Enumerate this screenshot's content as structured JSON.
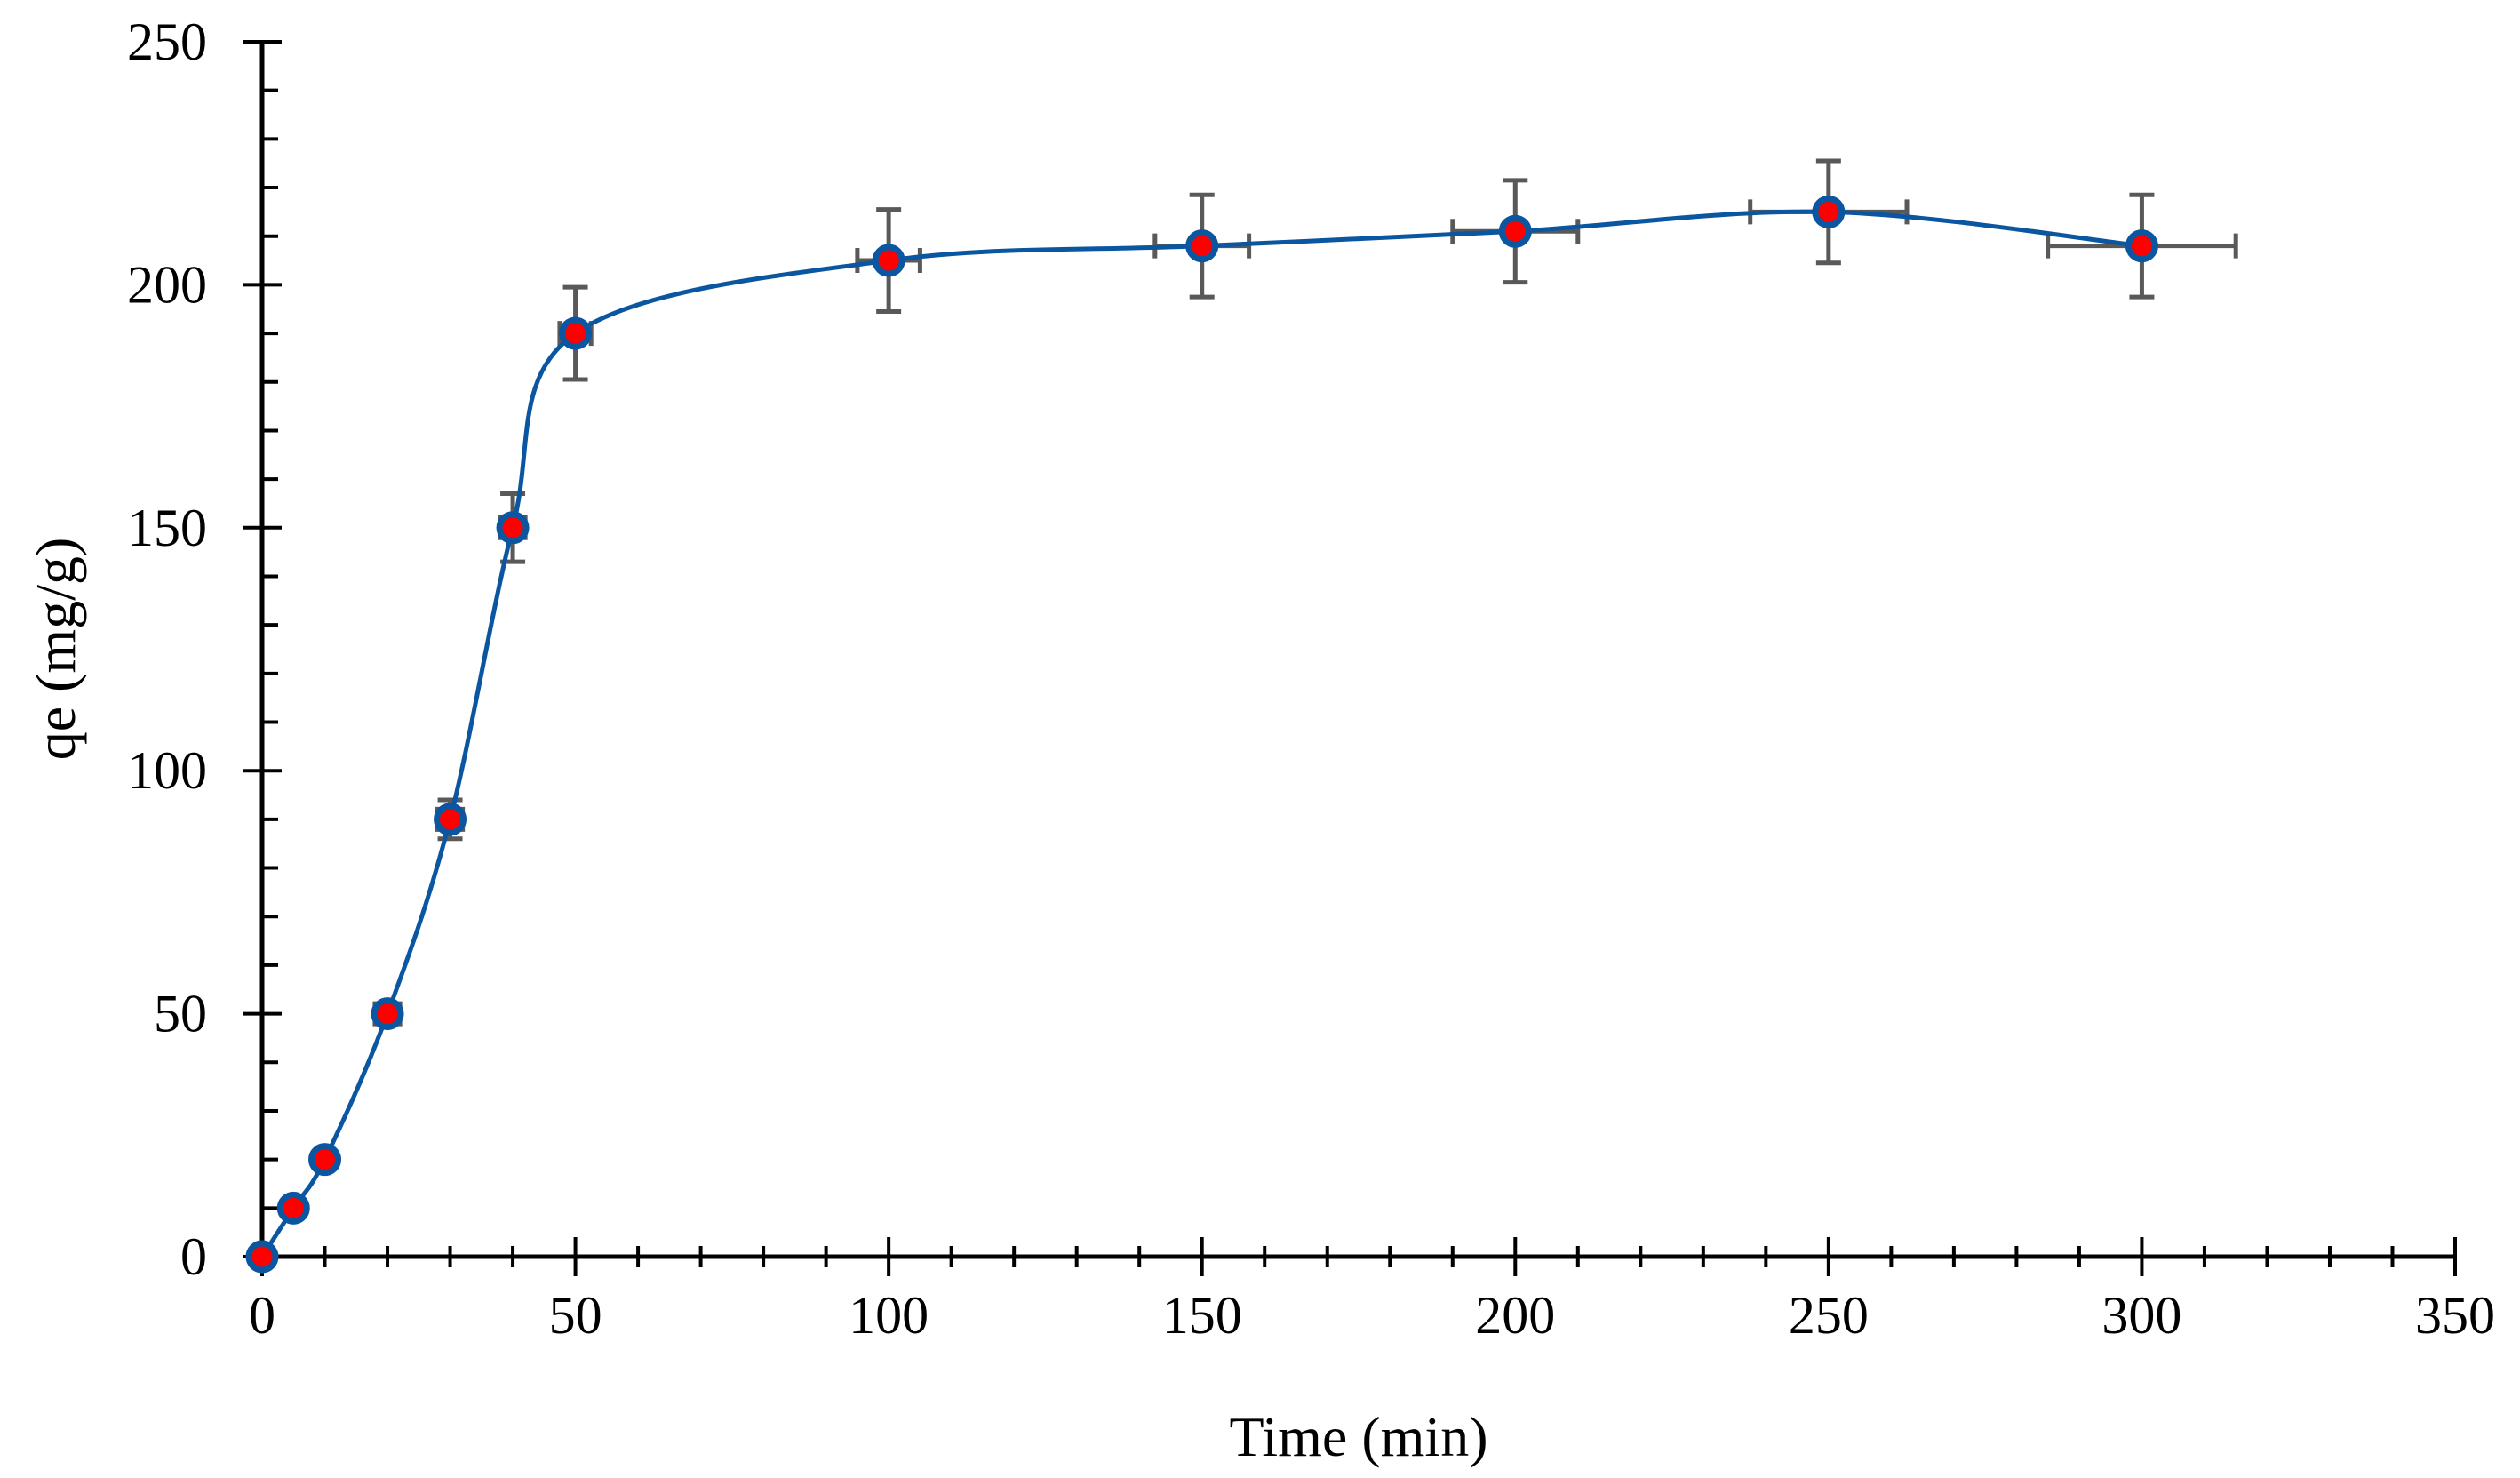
{
  "chart_data": {
    "type": "scatter",
    "title": "",
    "xlabel": "Time (min)",
    "ylabel": "qe (mg/g)",
    "xlim": [
      0,
      350
    ],
    "ylim": [
      0,
      250
    ],
    "x_major_ticks": [
      0,
      50,
      100,
      150,
      200,
      250,
      300,
      350
    ],
    "y_major_ticks": [
      0,
      50,
      100,
      150,
      200,
      250
    ],
    "x_minor_step": 10,
    "y_minor_step": 10,
    "grid": false,
    "series": [
      {
        "name": "qe",
        "x": [
          0,
          5,
          10,
          20,
          30,
          40,
          50,
          100,
          150,
          200,
          250,
          300
        ],
        "y": [
          0,
          10,
          20,
          50,
          90,
          150,
          190,
          205,
          208,
          211,
          215,
          208
        ],
        "y_err": [
          0,
          0,
          0,
          2,
          4,
          7,
          9.5,
          10.5,
          10.5,
          10.5,
          10.5,
          10.5
        ],
        "x_err": [
          0,
          0,
          0,
          2,
          2,
          2,
          2.5,
          5,
          7.5,
          10,
          12.5,
          15
        ],
        "smooth_line": true,
        "colors": {
          "marker_fill": "#ff0000",
          "marker_edge": "#0b56a0",
          "line": "#0b56a0",
          "error_bar": "#595959"
        }
      }
    ]
  }
}
